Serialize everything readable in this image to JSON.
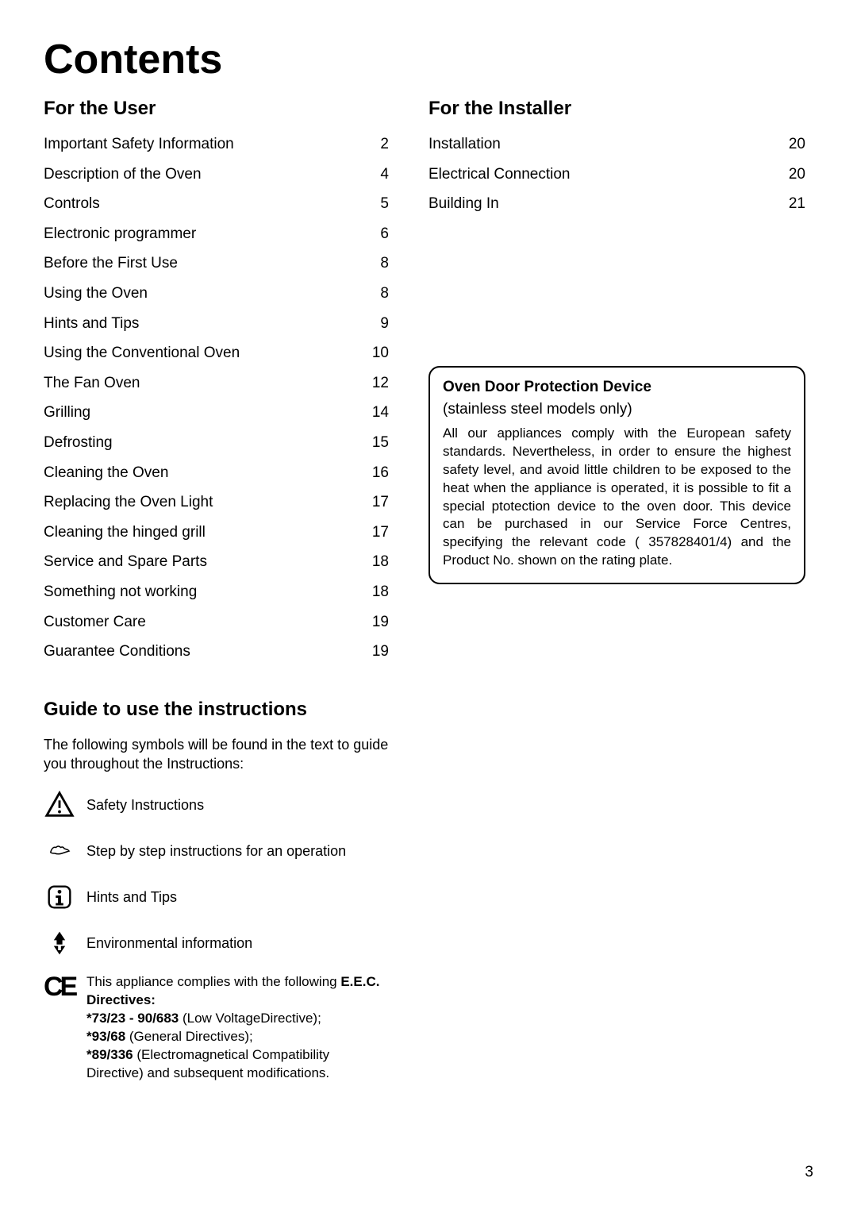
{
  "title": "Contents",
  "pageNumber": "3",
  "leftSection": {
    "heading": "For the User",
    "items": [
      {
        "label": "Important Safety Information",
        "page": "2"
      },
      {
        "label": "Description of the Oven",
        "page": "4"
      },
      {
        "label": "Controls",
        "page": "5"
      },
      {
        "label": "Electronic programmer",
        "page": "6"
      },
      {
        "label": "Before the First Use",
        "page": "8"
      },
      {
        "label": "Using the Oven",
        "page": "8"
      },
      {
        "label": "Hints and Tips",
        "page": "9"
      },
      {
        "label": "Using the Conventional Oven",
        "page": "10"
      },
      {
        "label": "The Fan Oven",
        "page": "12"
      },
      {
        "label": "Grilling",
        "page": "14"
      },
      {
        "label": "Defrosting",
        "page": "15"
      },
      {
        "label": "Cleaning the Oven",
        "page": "16"
      },
      {
        "label": "Replacing the Oven Light",
        "page": "17"
      },
      {
        "label": "Cleaning the hinged grill",
        "page": "17"
      },
      {
        "label": "Service and Spare Parts",
        "page": "18"
      },
      {
        "label": "Something not working",
        "page": "18"
      },
      {
        "label": "Customer Care",
        "page": "19"
      },
      {
        "label": "Guarantee Conditions",
        "page": "19"
      }
    ]
  },
  "rightSection": {
    "heading": "For the Installer",
    "items": [
      {
        "label": "Installation",
        "page": "20"
      },
      {
        "label": "Electrical Connection",
        "page": "20"
      },
      {
        "label": "Building In",
        "page": "21"
      }
    ]
  },
  "noticeBox": {
    "title": "Oven Door Protection Device",
    "subtitle": "(stainless steel models only)",
    "body": "All our appliances comply with the European safety standards. Nevertheless, in order to ensure the highest safety level, and avoid little children to be exposed to the heat when the appliance is operated, it is possible to fit a special ptotection device to the oven door. This device can be purchased in our Service Force Centres, specifying the relevant code ( 357828401/4) and the Product No. shown on the rating plate."
  },
  "guide": {
    "heading": "Guide to use the instructions",
    "intro": "The following symbols will be found in the text to guide you throughout the Instructions:",
    "symbols": [
      {
        "name": "warning-icon",
        "label": "Safety Instructions"
      },
      {
        "name": "hand-icon",
        "label": "Step by step instructions for an operation"
      },
      {
        "name": "info-icon",
        "label": "Hints and Tips"
      },
      {
        "name": "recycle-icon",
        "label": "Environmental information"
      }
    ],
    "compliance": {
      "ceLabel": "CE",
      "intro": "This appliance complies with the following ",
      "boldText": "E.E.C. Directives:",
      "lines": [
        {
          "bold": "*73/23 - 90/683",
          "rest": " (Low VoltageDirective);"
        },
        {
          "bold": "*93/68",
          "rest": " (General Directives);"
        },
        {
          "bold": "*89/336",
          "rest": " (Electromagnetical Compatibility Directive) and subsequent modifications."
        }
      ]
    }
  }
}
